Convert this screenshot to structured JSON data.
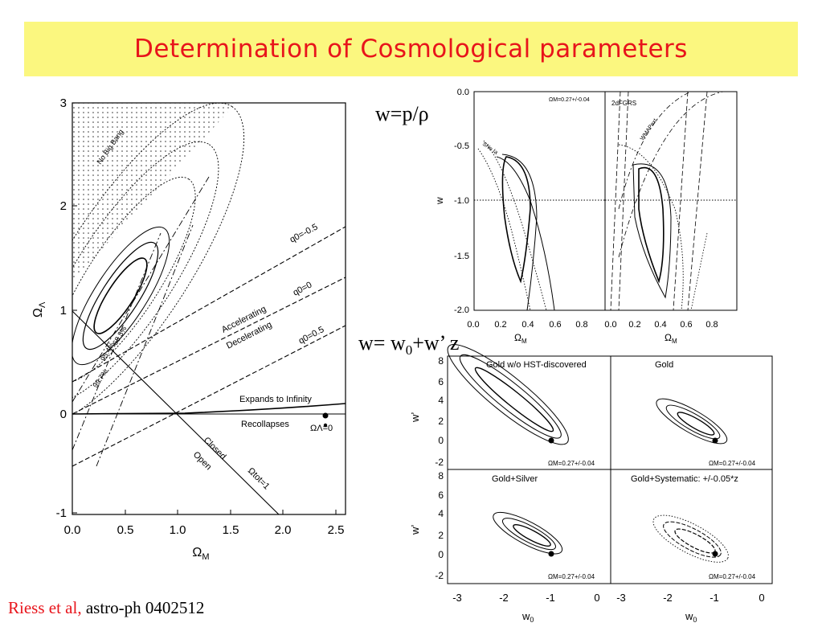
{
  "slide": {
    "title": "Determination of Cosmological parameters",
    "eq_w": "w=p/ρ",
    "eq_w2_prefix": "w= w",
    "eq_w2_sub": "0",
    "eq_w2_suffix": "+w’ z",
    "citation_authors": "Riess et al,",
    "citation_ref": "astro-ph 0402512"
  },
  "colors": {
    "title_bg": "#fbf77f",
    "title_text": "#e8141b",
    "citation_authors": "#e8141b"
  },
  "left_plot": {
    "xlabel": "Ω",
    "xlabel_sub": "M",
    "ylabel": "Ω",
    "ylabel_sub": "Λ",
    "xticks": [
      "0.0",
      "0.5",
      "1.0",
      "1.5",
      "2.0",
      "2.5"
    ],
    "yticks": [
      "-1",
      "0",
      "1",
      "2",
      "3"
    ],
    "annotations": {
      "no_big_bang": "No Big Bang",
      "q0_m05": "q0=-0.5",
      "q0_0": "q0=0",
      "q0_05": "q0=0.5",
      "accelerating": "Accelerating",
      "decelerating": "Decelerating",
      "expands": "Expands to Infinity",
      "recollapses": "Recollapses",
      "omega_lambda_0": "ΩΛ=0",
      "closed": "Closed",
      "open": "Open",
      "omega_tot": "Ωtot=1",
      "c683": "68.3%",
      "c954": "95.4%",
      "c997": "99.7%"
    }
  },
  "top_right_plot": {
    "xticks": [
      "0.0",
      "0.2",
      "0.4",
      "0.6",
      "0.8",
      "0.0",
      "0.2",
      "0.4",
      "0.6",
      "0.8"
    ],
    "yticks": [
      "0.0",
      "-0.5",
      "-1.0",
      "-1.5",
      "-2.0"
    ],
    "ylabel": "w",
    "xlabel_left": "Ω",
    "xlabel_left_sub": "M",
    "xlabel_right": "Ω",
    "xlabel_right_sub": "M",
    "panel_label": "ΩM=0.27+/-0.04",
    "label_2dfgrs": "2dFGRS",
    "label_wmap": "WMAPext",
    "label_sne": "SNe Ia"
  },
  "bottom_right_plot": {
    "panels": [
      "Gold w/o HST-discovered",
      "Gold",
      "Gold+Silver",
      "Gold+Systematic: +/-0.05*z"
    ],
    "omega_label": "ΩM=0.27+/-0.04",
    "yticks": [
      "8",
      "6",
      "4",
      "2",
      "0",
      "-2"
    ],
    "xticks": [
      "-3",
      "-2",
      "-1",
      "0",
      "-3",
      "-2",
      "-1",
      "0"
    ],
    "xlabel": "w",
    "xlabel_sub": "0",
    "ylabel": "w’"
  }
}
